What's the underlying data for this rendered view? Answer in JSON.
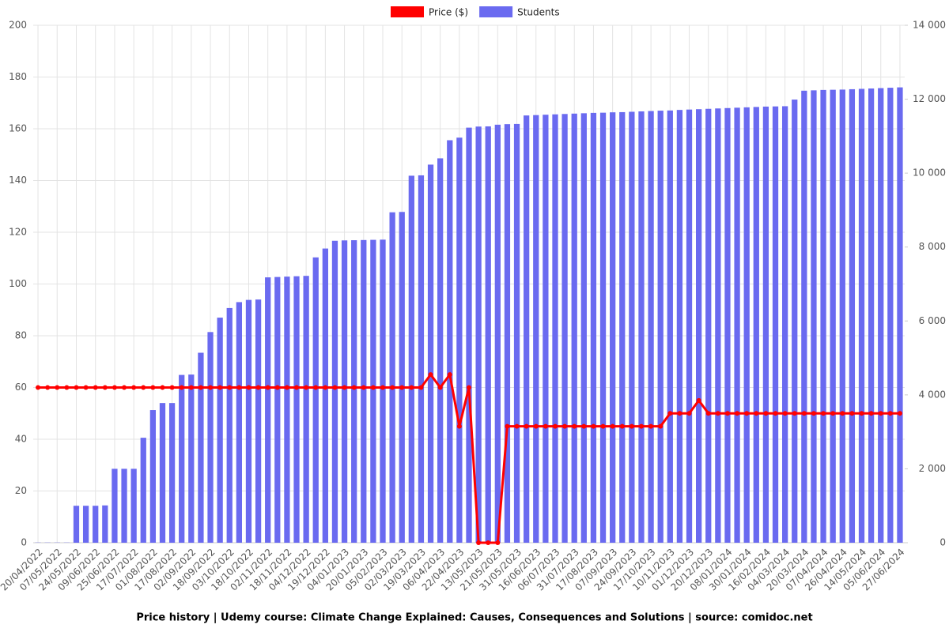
{
  "chart_data": {
    "type": "bar-line",
    "title": "Price history | Udemy course: Climate Change Explained: Causes, Consequences and Solutions | source: comidoc.net",
    "categories": [
      "20/04/2022",
      null,
      "07/05/2022",
      null,
      "24/05/2022",
      null,
      "09/06/2022",
      null,
      "25/06/2022",
      null,
      "17/07/2022",
      null,
      "01/08/2022",
      null,
      "17/08/2022",
      null,
      "02/09/2022",
      null,
      "18/09/2022",
      null,
      "03/10/2022",
      null,
      "18/10/2022",
      null,
      "02/11/2022",
      null,
      "18/11/2022",
      null,
      "04/12/2022",
      null,
      "19/12/2022",
      null,
      "04/01/2023",
      null,
      "20/01/2023",
      null,
      "05/02/2023",
      null,
      "02/03/2023",
      null,
      "19/03/2023",
      null,
      "06/04/2023",
      null,
      "22/04/2023",
      null,
      "13/05/2023",
      null,
      "21/05/2023",
      null,
      "31/05/2023",
      null,
      "16/06/2023",
      null,
      "06/07/2023",
      null,
      "31/07/2023",
      null,
      "17/08/2023",
      null,
      "07/09/2023",
      null,
      "24/09/2023",
      null,
      "17/10/2023",
      null,
      "10/11/2023",
      null,
      "01/12/2023",
      null,
      "20/12/2023",
      null,
      "08/01/2024",
      null,
      "30/01/2024",
      null,
      "16/02/2024",
      null,
      "04/03/2024",
      null,
      "20/03/2024",
      null,
      "07/04/2024",
      null,
      "26/04/2024",
      null,
      "14/05/2024",
      null,
      "05/06/2024",
      null,
      "27/06/2024"
    ],
    "series": [
      {
        "name": "Price ($)",
        "color": "#ff0000",
        "kind": "line",
        "values": [
          60,
          60,
          60,
          60,
          60,
          60,
          60,
          60,
          60,
          60,
          60,
          60,
          60,
          60,
          60,
          60,
          60,
          60,
          60,
          60,
          60,
          60,
          60,
          60,
          60,
          60,
          60,
          60,
          60,
          60,
          60,
          60,
          60,
          60,
          60,
          60,
          60,
          60,
          60,
          60,
          60,
          65,
          60,
          65,
          45,
          60,
          0,
          0,
          0,
          45,
          45,
          45,
          45,
          45,
          45,
          45,
          45,
          45,
          45,
          45,
          45,
          45,
          45,
          45,
          45,
          45,
          50,
          50,
          50,
          55,
          50,
          50,
          50,
          50,
          50,
          50,
          50,
          50,
          50,
          50,
          50,
          50,
          50,
          50,
          50,
          50,
          50,
          50,
          50,
          50,
          50
        ]
      },
      {
        "name": "Students",
        "color": "#6a6af0",
        "kind": "bar",
        "axis": "y2",
        "values": [
          5,
          5,
          5,
          5,
          1000,
          1000,
          1000,
          1010,
          2000,
          2000,
          2000,
          2840,
          3590,
          3780,
          3780,
          4540,
          4550,
          5140,
          5700,
          6090,
          6350,
          6510,
          6570,
          6580,
          7180,
          7190,
          7200,
          7210,
          7220,
          7720,
          7960,
          8170,
          8180,
          8185,
          8190,
          8195,
          8200,
          8940,
          8950,
          9930,
          9940,
          10230,
          10400,
          10890,
          10960,
          11230,
          11260,
          11265,
          11310,
          11325,
          11330,
          11560,
          11570,
          11580,
          11590,
          11600,
          11610,
          11620,
          11630,
          11635,
          11645,
          11650,
          11660,
          11670,
          11680,
          11690,
          11695,
          11710,
          11720,
          11730,
          11740,
          11750,
          11760,
          11770,
          11780,
          11790,
          11800,
          11805,
          11810,
          11990,
          12230,
          12240,
          12250,
          12255,
          12260,
          12270,
          12280,
          12290,
          12300,
          12310,
          12320
        ]
      }
    ],
    "ylim": [
      0,
      200
    ],
    "yticks": [
      0,
      20,
      40,
      60,
      80,
      100,
      120,
      140,
      160,
      180,
      200
    ],
    "y2lim": [
      0,
      14000
    ],
    "y2ticks": [
      0,
      {
        "value": 2000,
        "label": "2 000"
      },
      {
        "value": 4000,
        "label": "4 000"
      },
      {
        "value": 6000,
        "label": "6 000"
      },
      {
        "value": 8000,
        "label": "8 000"
      },
      {
        "value": 10000,
        "label": "10 000"
      },
      {
        "value": 12000,
        "label": "12 000"
      },
      {
        "value": 14000,
        "label": "14 000"
      }
    ],
    "grid": true,
    "legend": "top"
  }
}
